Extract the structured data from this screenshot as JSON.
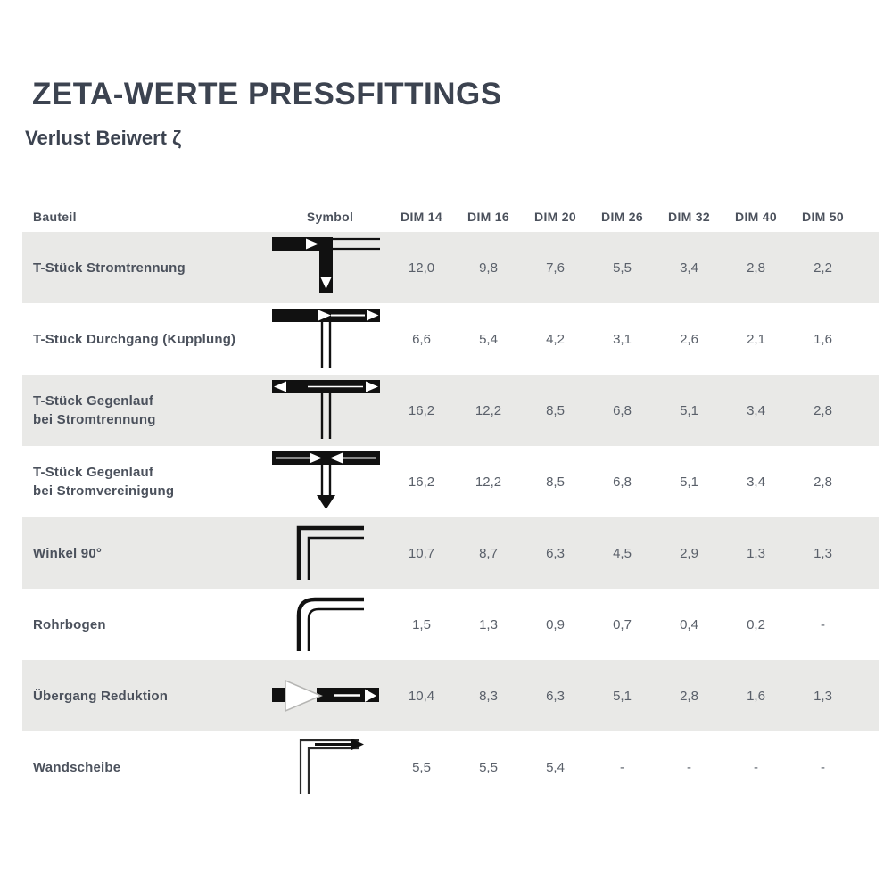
{
  "title": "ZETA-WERTE PRESSFITTINGS",
  "subtitle": "Verlust Beiwert ζ",
  "colors": {
    "heading_text": "#3c4350",
    "body_text": "#4b515c",
    "value_text": "#5a606a",
    "row_alt_background": "#e9e9e7",
    "symbol_ink": "#111111"
  },
  "table": {
    "columns": [
      "Bauteil",
      "Symbol",
      "DIM 14",
      "DIM 16",
      "DIM 20",
      "DIM 26",
      "DIM 32",
      "DIM 40",
      "DIM 50"
    ],
    "rows": [
      {
        "label": [
          "T-Stück Stromtrennung"
        ],
        "symbol": "tee-flow-split-icon",
        "values": [
          "12,0",
          "9,8",
          "7,6",
          "5,5",
          "3,4",
          "2,8",
          "2,2"
        ]
      },
      {
        "label": [
          "T-Stück Durchgang (Kupplung)"
        ],
        "symbol": "tee-flow-through-icon",
        "values": [
          "6,6",
          "5,4",
          "4,2",
          "3,1",
          "2,6",
          "2,1",
          "1,6"
        ]
      },
      {
        "label": [
          "T-Stück Gegenlauf",
          "bei Stromtrennung"
        ],
        "symbol": "tee-counterflow-split-icon",
        "values": [
          "16,2",
          "12,2",
          "8,5",
          "6,8",
          "5,1",
          "3,4",
          "2,8"
        ]
      },
      {
        "label": [
          "T-Stück Gegenlauf",
          "bei Stromvereinigung"
        ],
        "symbol": "tee-counterflow-merge-icon",
        "values": [
          "16,2",
          "12,2",
          "8,5",
          "6,8",
          "5,1",
          "3,4",
          "2,8"
        ]
      },
      {
        "label": [
          "Winkel 90°"
        ],
        "symbol": "elbow-90-icon",
        "values": [
          "10,7",
          "8,7",
          "6,3",
          "4,5",
          "2,9",
          "1,3",
          "1,3"
        ]
      },
      {
        "label": [
          "Rohrbogen"
        ],
        "symbol": "pipe-bend-icon",
        "values": [
          "1,5",
          "1,3",
          "0,9",
          "0,7",
          "0,4",
          "0,2",
          "-"
        ]
      },
      {
        "label": [
          "Übergang Reduktion"
        ],
        "symbol": "reducer-icon",
        "values": [
          "10,4",
          "8,3",
          "6,3",
          "5,1",
          "2,8",
          "1,6",
          "1,3"
        ]
      },
      {
        "label": [
          "Wandscheibe"
        ],
        "symbol": "wall-plate-elbow-icon",
        "values": [
          "5,5",
          "5,5",
          "5,4",
          "-",
          "-",
          "-",
          "-"
        ]
      }
    ]
  }
}
